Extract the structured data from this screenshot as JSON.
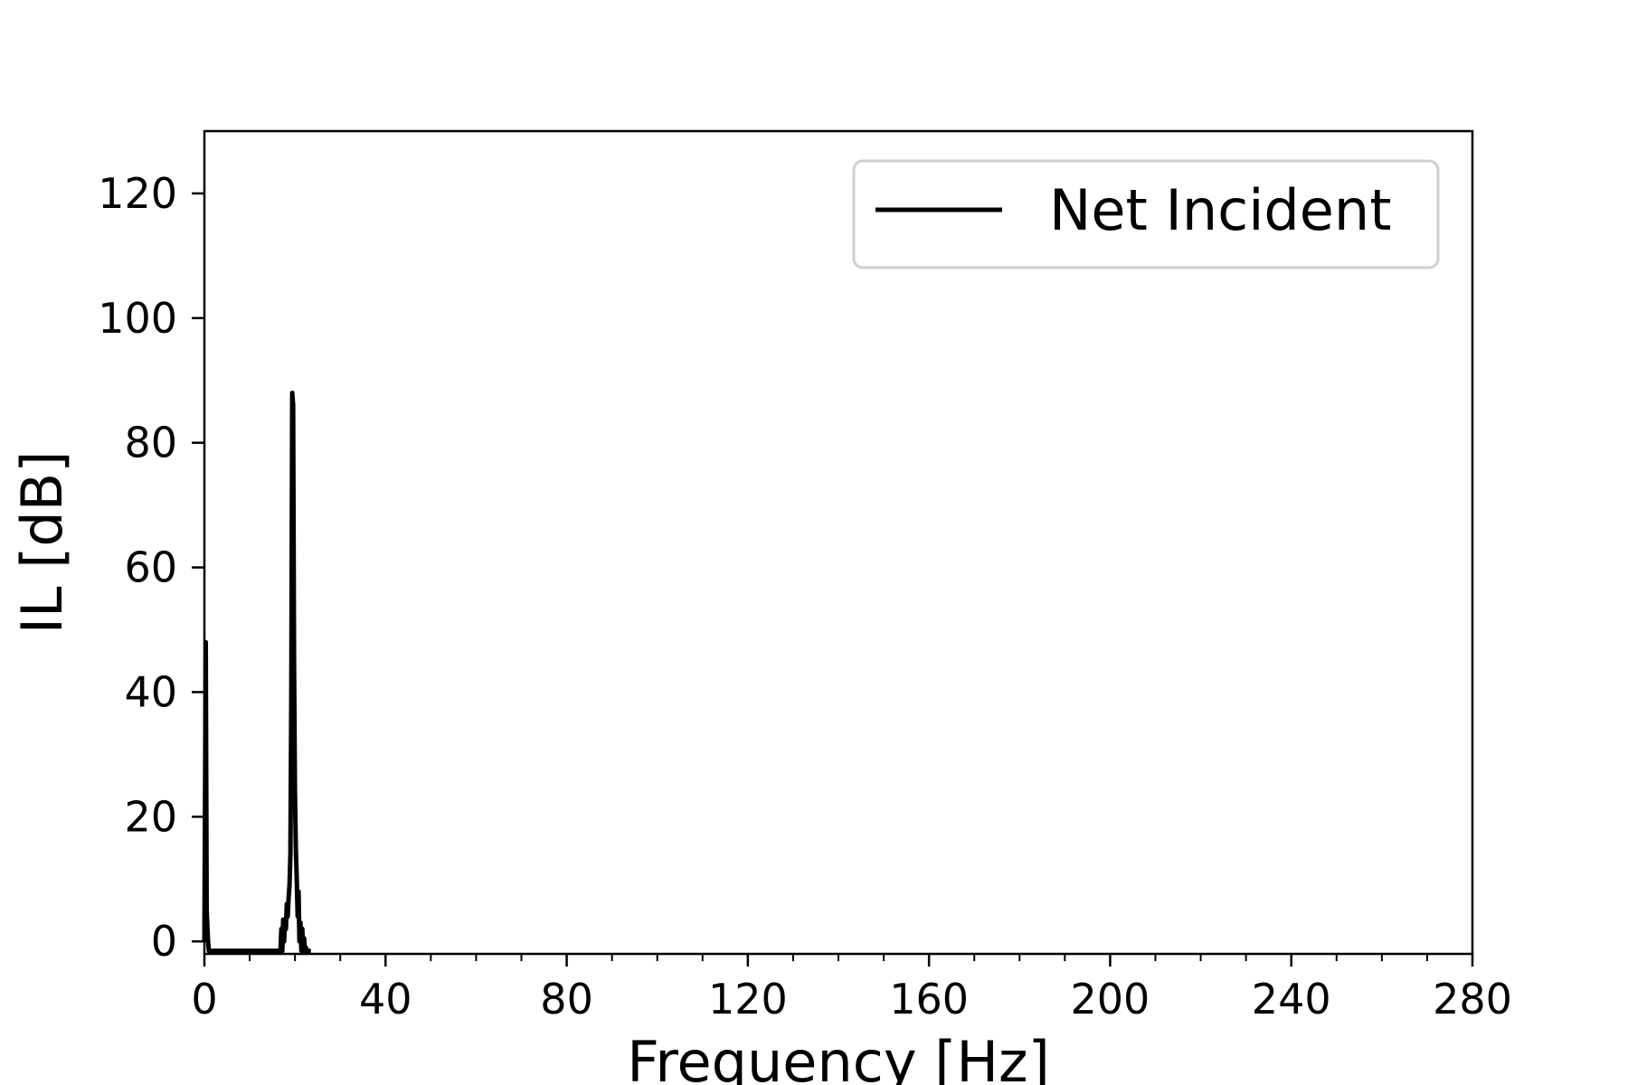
{
  "chart_data": {
    "type": "line",
    "title": "",
    "xlabel": "Frequency [Hz]",
    "ylabel": "IL [dB]",
    "xlim": [
      0,
      280
    ],
    "ylim": [
      -2,
      130
    ],
    "x_major_ticks": [
      0,
      40,
      80,
      120,
      160,
      200,
      240,
      280
    ],
    "x_major_tick_labels": [
      "0",
      "40",
      "80",
      "120",
      "160",
      "200",
      "240",
      "280"
    ],
    "x_minor_ticks": [
      10,
      20,
      30,
      50,
      60,
      70,
      90,
      100,
      110,
      130,
      140,
      150,
      170,
      180,
      190,
      210,
      220,
      230,
      250,
      260,
      270
    ],
    "y_ticks": [
      0,
      20,
      40,
      60,
      80,
      100,
      120
    ],
    "y_tick_labels": [
      "0",
      "20",
      "40",
      "60",
      "80",
      "100",
      "120"
    ],
    "grid": false,
    "legend": {
      "position": "top-right",
      "entries": [
        "Net Incident"
      ]
    },
    "series": [
      {
        "name": "Net Incident",
        "color": "#000000",
        "x": [
          0.0,
          0.3,
          0.5,
          0.8,
          1.0,
          1.5,
          16.8,
          17.0,
          17.2,
          17.4,
          17.6,
          17.8,
          18.0,
          18.2,
          18.4,
          18.6,
          18.8,
          19.0,
          19.2,
          19.4,
          19.6,
          19.8,
          20.0,
          20.2,
          20.4,
          20.6,
          20.8,
          21.0,
          21.2,
          21.4,
          21.6,
          21.8,
          22.0,
          22.2,
          22.4,
          22.6,
          22.8,
          23.0,
          23.2,
          23.5
        ],
        "y": [
          0,
          48,
          5,
          0,
          -1.5,
          -1.5,
          -1.5,
          2,
          -1.5,
          3.5,
          0,
          3.5,
          2,
          6,
          4,
          7,
          9,
          14,
          40,
          88,
          86,
          45,
          24,
          15,
          10,
          4,
          8,
          0,
          3,
          -1.5,
          2,
          -1.5,
          0.5,
          -1.5,
          -1,
          -1.5,
          -1.5,
          -1.5,
          -1.5,
          -1.5
        ]
      }
    ]
  }
}
